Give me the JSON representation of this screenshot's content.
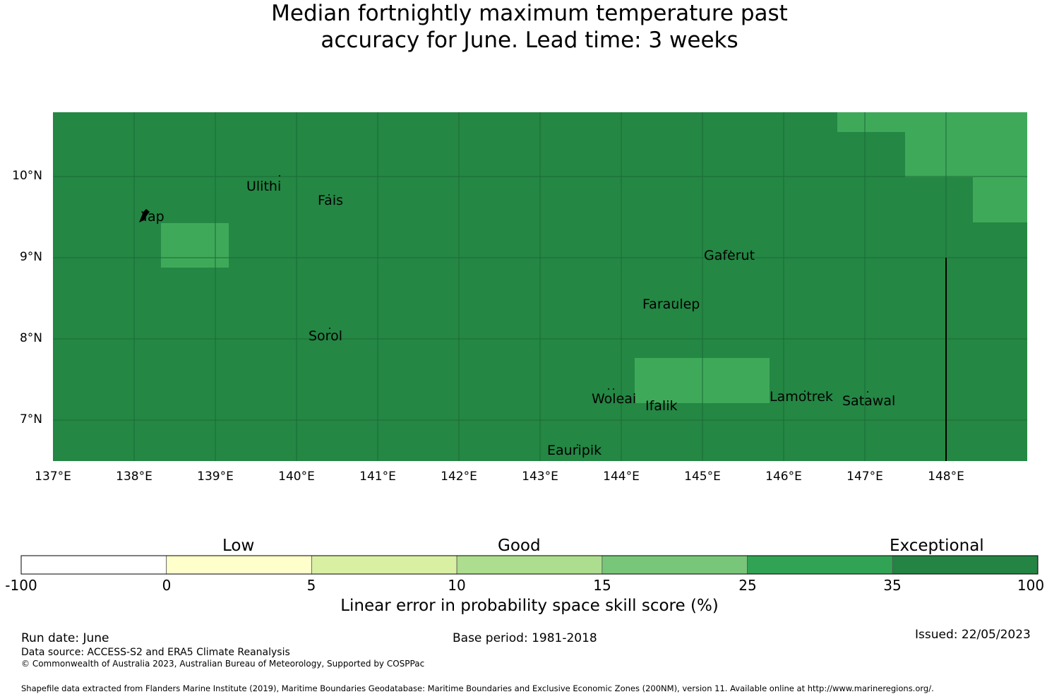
{
  "title": {
    "line1": "Median fortnightly maximum temperature past",
    "line2": "accuracy for June. Lead time: 3 weeks"
  },
  "map": {
    "base_color": "#248744",
    "highlight_color": "#3fa95a",
    "lat_labels": [
      "10°N",
      "9°N",
      "8°N",
      "7°N"
    ],
    "lon_labels": [
      "137°E",
      "138°E",
      "139°E",
      "140°E",
      "141°E",
      "142°E",
      "143°E",
      "144°E",
      "145°E",
      "146°E",
      "147°E",
      "148°E"
    ],
    "places": [
      "Ulithi",
      "Fais",
      "Yap",
      "Gaferut",
      "Faraulep",
      "Sorol",
      "Woleai",
      "Ifalik",
      "Lamotrek",
      "Satawal",
      "Eauripik"
    ]
  },
  "colorbar": {
    "categories": [
      "Low",
      "Good",
      "Exceptional"
    ],
    "ticks": [
      "-100",
      "0",
      "5",
      "10",
      "15",
      "25",
      "35",
      "100"
    ],
    "colors": [
      "#ffffff",
      "#ffffcc",
      "#d9f0a3",
      "#addd8e",
      "#78c679",
      "#31a354",
      "#238443"
    ],
    "label": "Linear error in probability space skill score (%)"
  },
  "footer": {
    "run_date": "Run date: June",
    "base_period": "Base period: 1981-2018",
    "issued": "Issued: 22/05/2023",
    "data_source": "Data source: ACCESS-S2 and ERA5 Climate Reanalysis",
    "copyright": "© Commonwealth of Australia 2023, Australian Bureau of Meteorology, Supported by COSPPac",
    "shapefile": "Shapefile data extracted from Flanders Marine Institute (2019), Maritime Boundaries Geodatabase: Maritime Boundaries and Exclusive Economic Zones (200NM), version 11. Available online at http://www.marineregions.org/."
  }
}
